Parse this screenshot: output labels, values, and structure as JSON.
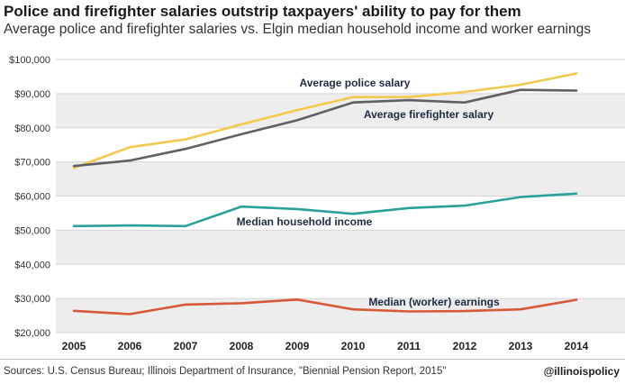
{
  "header": {
    "title": "Police and firefighter salaries outstrip taxpayers' ability to pay for them",
    "subtitle": "Average police and firefighter salaries vs. Elgin median household income and worker earnings"
  },
  "footer": {
    "source": "Sources: U.S. Census Bureau; Illinois Department of Insurance, \"Biennial Pension Report, 2015\"",
    "handle": "@illinoispolicy"
  },
  "colors": {
    "police": "#f2c94c",
    "firefighter": "#5f5f66",
    "household": "#2aa198",
    "worker": "#d9583a",
    "band": "#ededed"
  },
  "chart_data": {
    "type": "line",
    "x": [
      2005,
      2006,
      2007,
      2008,
      2009,
      2010,
      2011,
      2012,
      2013,
      2014
    ],
    "ylim": [
      20000,
      100000
    ],
    "yticks": [
      20000,
      30000,
      40000,
      50000,
      60000,
      70000,
      80000,
      90000,
      100000
    ],
    "ytick_labels": [
      "$20,000",
      "$30,000",
      "$40,000",
      "$50,000",
      "$60,000",
      "$70,000",
      "$80,000",
      "$90,000",
      "$100,000"
    ],
    "xtick_labels": [
      "2005",
      "2006",
      "2007",
      "2008",
      "2009",
      "2010",
      "2011",
      "2012",
      "2013",
      "2014"
    ],
    "grid": "alternating horizontal bands",
    "series": [
      {
        "key": "police",
        "name": "Average police salary",
        "values": [
          68200,
          74300,
          76600,
          81000,
          85200,
          89000,
          89000,
          90500,
          92600,
          95900
        ]
      },
      {
        "key": "firefighter",
        "name": "Average firefighter salary",
        "values": [
          68800,
          70400,
          73800,
          78100,
          82200,
          87400,
          88100,
          87400,
          91100,
          90900
        ]
      },
      {
        "key": "household",
        "name": "Median household income",
        "values": [
          51200,
          51400,
          51200,
          56900,
          56200,
          54800,
          56500,
          57200,
          59700,
          60700
        ]
      },
      {
        "key": "worker",
        "name": "Median (worker) earnings",
        "values": [
          26400,
          25400,
          28200,
          28600,
          29700,
          26800,
          26200,
          26300,
          26800,
          29600
        ]
      }
    ]
  }
}
